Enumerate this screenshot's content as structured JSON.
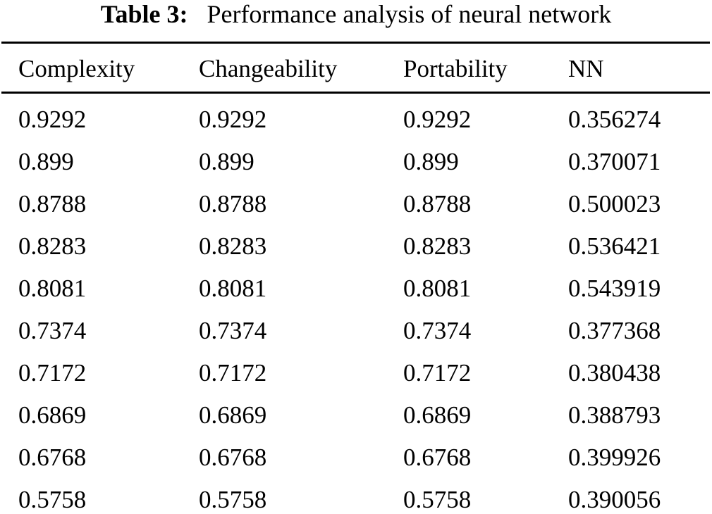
{
  "table": {
    "caption_label": "Table 3:",
    "caption_text": "Performance analysis of neural network",
    "headers": [
      "Complexity",
      "Changeability",
      "Portability",
      "NN"
    ],
    "rows": [
      [
        "0.9292",
        "0.9292",
        "0.9292",
        "0.356274"
      ],
      [
        "0.899",
        "0.899",
        "0.899",
        "0.370071"
      ],
      [
        "0.8788",
        "0.8788",
        "0.8788",
        "0.500023"
      ],
      [
        "0.8283",
        "0.8283",
        "0.8283",
        "0.536421"
      ],
      [
        "0.8081",
        "0.8081",
        "0.8081",
        "0.543919"
      ],
      [
        "0.7374",
        "0.7374",
        "0.7374",
        "0.377368"
      ],
      [
        "0.7172",
        "0.7172",
        "0.7172",
        "0.380438"
      ],
      [
        "0.6869",
        "0.6869",
        "0.6869",
        "0.388793"
      ],
      [
        "0.6768",
        "0.6768",
        "0.6768",
        "0.399926"
      ],
      [
        "0.5758",
        "0.5758",
        "0.5758",
        "0.390056"
      ]
    ]
  }
}
